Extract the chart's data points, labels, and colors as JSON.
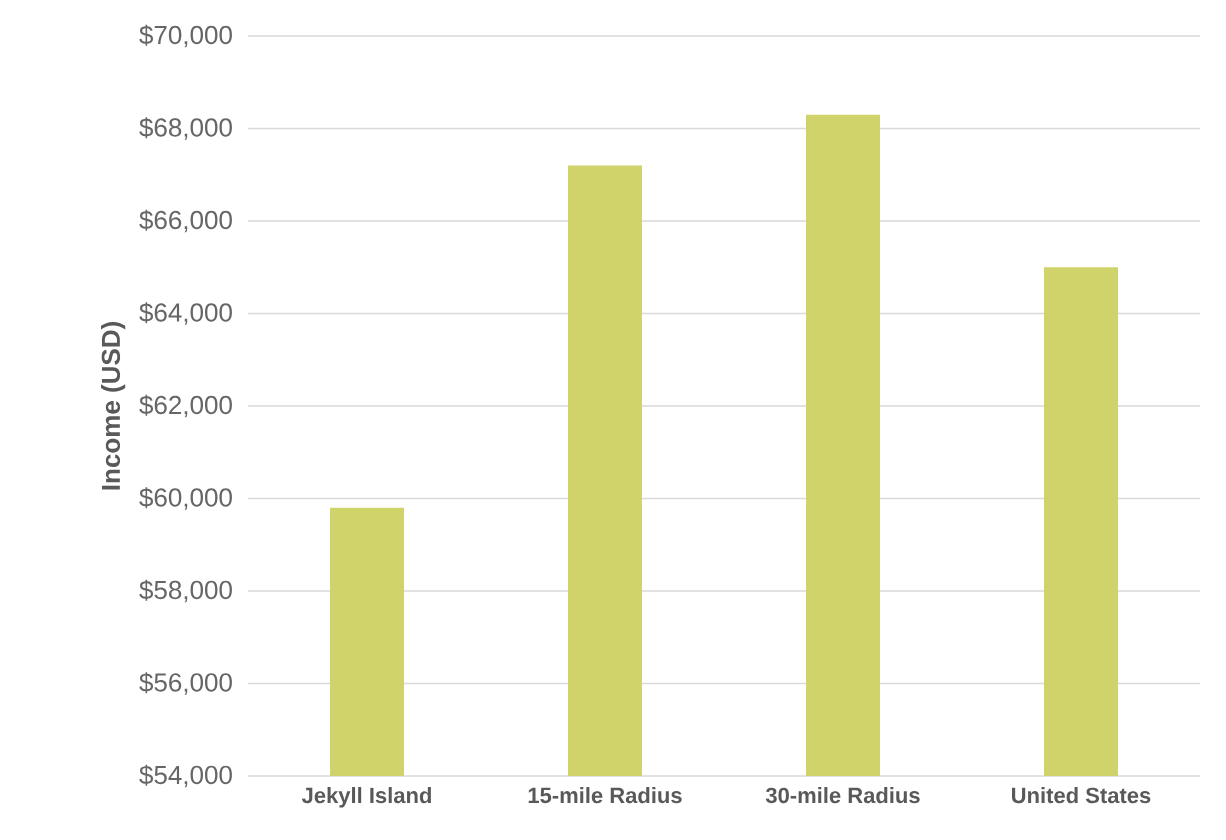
{
  "chart_data": {
    "type": "bar",
    "ylabel": "Income (USD)",
    "categories": [
      "Jekyll Island",
      "15-mile Radius",
      "30-mile Radius",
      "United States"
    ],
    "values": [
      59800,
      67200,
      68300,
      65000
    ],
    "color": "#cfd36a",
    "ylim": [
      54000,
      70000
    ],
    "yticks": [
      {
        "value": 54000,
        "label": "$54,000"
      },
      {
        "value": 56000,
        "label": "$56,000"
      },
      {
        "value": 58000,
        "label": "$58,000"
      },
      {
        "value": 60000,
        "label": "$60,000"
      },
      {
        "value": 62000,
        "label": "$62,000"
      },
      {
        "value": 64000,
        "label": "$64,000"
      },
      {
        "value": 66000,
        "label": "$66,000"
      },
      {
        "value": 68000,
        "label": "$68,000"
      },
      {
        "value": 70000,
        "label": "$70,000"
      }
    ],
    "grid": "y"
  }
}
